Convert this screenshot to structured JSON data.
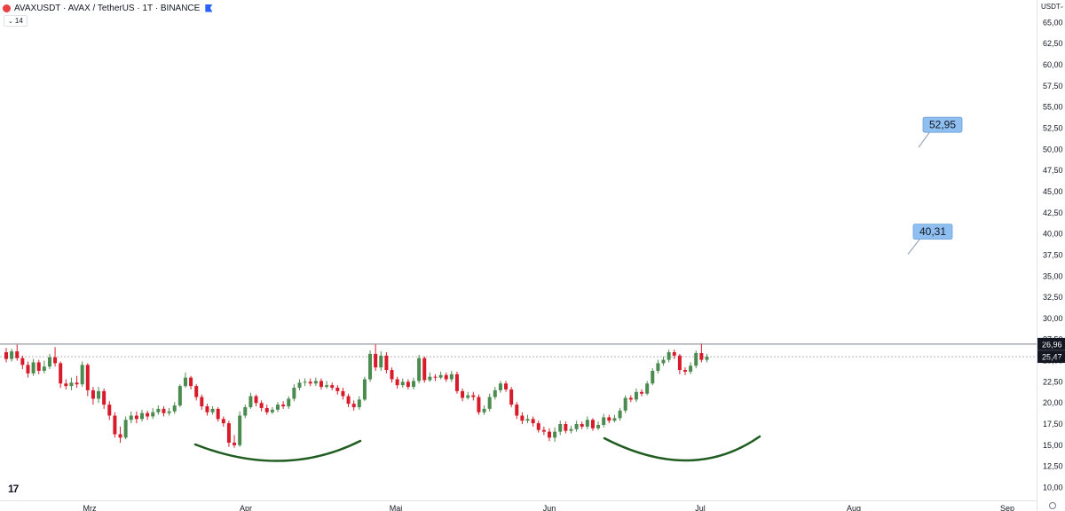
{
  "header": {
    "title": "AVAXUSDT · AVAX / TetherUS · 1T · BINANCE",
    "interval_badge": "14"
  },
  "price_axis": {
    "currency": "USDT",
    "currency_arrow": "⌄"
  },
  "tv_logo": "17",
  "colors": {
    "up": "#4b8b4f",
    "down": "#d81b2a",
    "curve": "#1f5c1f",
    "callout": "#8fbff0",
    "background": "#ffffff"
  },
  "chart_data": {
    "type": "candlestick",
    "ylim": [
      10,
      66
    ],
    "yticks": [
      "10,00",
      "12,50",
      "15,00",
      "17,50",
      "20,00",
      "22,50",
      "25,00",
      "27,50",
      "30,00",
      "32,50",
      "35,00",
      "37,50",
      "40,00",
      "42,50",
      "45,00",
      "47,50",
      "50,00",
      "52,50",
      "55,00",
      "57,50",
      "60,00",
      "62,50",
      "65,00"
    ],
    "xticks": [
      "Mrz",
      "Apr",
      "Mai",
      "Jun",
      "Jul",
      "Aug",
      "Sep"
    ],
    "current_price": "25,47",
    "resistance": {
      "value": 26.96,
      "label": "26,96"
    },
    "targets": [
      {
        "label": "52,95",
        "value": 52.95
      },
      {
        "label": "40,31",
        "value": 40.31
      }
    ],
    "candles": [
      [
        26.0,
        25.2,
        26.5,
        24.8
      ],
      [
        25.2,
        26.1,
        26.4,
        24.9
      ],
      [
        26.1,
        25.3,
        26.9,
        25.0
      ],
      [
        25.3,
        24.5,
        25.6,
        24.0
      ],
      [
        24.5,
        23.5,
        24.9,
        23.0
      ],
      [
        23.5,
        24.8,
        25.2,
        23.2
      ],
      [
        24.8,
        23.8,
        25.1,
        23.4
      ],
      [
        23.8,
        24.3,
        25.0,
        23.5
      ],
      [
        24.3,
        25.4,
        25.8,
        24.0
      ],
      [
        25.4,
        24.7,
        26.6,
        24.3
      ],
      [
        24.7,
        22.3,
        24.9,
        21.8
      ],
      [
        22.3,
        22.0,
        22.8,
        21.6
      ],
      [
        22.0,
        22.4,
        23.0,
        21.5
      ],
      [
        22.4,
        22.2,
        23.2,
        21.8
      ],
      [
        22.2,
        24.5,
        24.9,
        21.9
      ],
      [
        24.5,
        21.5,
        24.7,
        20.8
      ],
      [
        21.5,
        20.5,
        21.9,
        19.8
      ],
      [
        20.5,
        21.4,
        21.9,
        20.0
      ],
      [
        21.4,
        19.8,
        21.7,
        19.3
      ],
      [
        19.8,
        18.5,
        20.2,
        18.0
      ],
      [
        18.5,
        16.3,
        18.9,
        15.9
      ],
      [
        16.3,
        15.9,
        17.2,
        15.3
      ],
      [
        15.9,
        18.0,
        18.4,
        15.7
      ],
      [
        18.0,
        18.5,
        19.0,
        17.6
      ],
      [
        18.5,
        18.1,
        19.0,
        17.6
      ],
      [
        18.1,
        18.8,
        19.2,
        17.8
      ],
      [
        18.8,
        18.4,
        19.1,
        18.0
      ],
      [
        18.4,
        18.9,
        19.4,
        18.1
      ],
      [
        18.9,
        19.3,
        19.7,
        18.6
      ],
      [
        19.3,
        18.8,
        19.6,
        18.4
      ],
      [
        18.8,
        19.0,
        19.4,
        18.5
      ],
      [
        19.0,
        19.7,
        20.1,
        18.7
      ],
      [
        19.7,
        22.0,
        22.2,
        19.5
      ],
      [
        22.0,
        23.0,
        23.6,
        21.8
      ],
      [
        23.0,
        22.0,
        23.2,
        21.6
      ],
      [
        22.0,
        20.7,
        22.2,
        20.3
      ],
      [
        20.7,
        19.6,
        21.0,
        19.2
      ],
      [
        19.6,
        18.9,
        19.9,
        18.5
      ],
      [
        18.9,
        19.3,
        19.6,
        18.6
      ],
      [
        19.3,
        18.1,
        19.5,
        17.8
      ],
      [
        18.1,
        17.6,
        18.4,
        17.2
      ],
      [
        17.6,
        15.3,
        17.9,
        14.8
      ],
      [
        15.3,
        15.0,
        16.2,
        14.7
      ],
      [
        15.0,
        18.5,
        19.0,
        14.8
      ],
      [
        18.5,
        19.5,
        19.8,
        18.2
      ],
      [
        19.5,
        20.8,
        21.2,
        19.3
      ],
      [
        20.8,
        20.0,
        21.0,
        19.6
      ],
      [
        20.0,
        19.4,
        20.3,
        19.0
      ],
      [
        19.4,
        18.9,
        19.8,
        18.6
      ],
      [
        18.9,
        19.2,
        19.5,
        18.7
      ],
      [
        19.2,
        19.8,
        20.1,
        18.9
      ],
      [
        19.8,
        19.6,
        20.2,
        19.3
      ],
      [
        19.6,
        20.5,
        20.8,
        19.3
      ],
      [
        20.5,
        21.8,
        22.2,
        20.2
      ],
      [
        21.8,
        22.4,
        22.8,
        21.5
      ],
      [
        22.4,
        22.5,
        22.9,
        22.0
      ],
      [
        22.5,
        22.3,
        22.9,
        22.0
      ],
      [
        22.3,
        22.6,
        23.0,
        22.0
      ],
      [
        22.6,
        21.9,
        22.9,
        21.6
      ],
      [
        21.9,
        22.1,
        22.6,
        21.7
      ],
      [
        22.1,
        21.8,
        22.4,
        21.5
      ],
      [
        21.8,
        21.4,
        22.1,
        21.0
      ],
      [
        21.4,
        20.8,
        21.8,
        20.4
      ],
      [
        20.8,
        19.9,
        21.1,
        19.5
      ],
      [
        19.9,
        19.5,
        20.3,
        19.1
      ],
      [
        19.5,
        20.4,
        20.8,
        19.2
      ],
      [
        20.4,
        22.8,
        23.1,
        20.2
      ],
      [
        22.8,
        25.8,
        26.2,
        22.5
      ],
      [
        25.8,
        24.2,
        26.9,
        23.8
      ],
      [
        24.2,
        25.6,
        26.1,
        23.8
      ],
      [
        25.6,
        23.9,
        26.0,
        23.5
      ],
      [
        23.9,
        22.8,
        24.2,
        22.4
      ],
      [
        22.8,
        22.1,
        23.1,
        21.7
      ],
      [
        22.1,
        22.5,
        22.9,
        21.8
      ],
      [
        22.5,
        21.9,
        22.8,
        21.6
      ],
      [
        21.9,
        22.6,
        23.0,
        21.6
      ],
      [
        22.6,
        25.3,
        25.7,
        22.3
      ],
      [
        25.3,
        22.7,
        25.5,
        22.4
      ],
      [
        22.7,
        23.1,
        23.6,
        22.5
      ],
      [
        23.1,
        23.0,
        23.4,
        22.6
      ],
      [
        23.0,
        23.3,
        23.7,
        22.8
      ],
      [
        23.3,
        22.8,
        23.6,
        22.5
      ],
      [
        22.8,
        23.4,
        23.8,
        22.5
      ],
      [
        23.4,
        21.4,
        23.7,
        21.1
      ],
      [
        21.4,
        20.6,
        21.7,
        20.2
      ],
      [
        20.6,
        20.9,
        21.3,
        20.4
      ],
      [
        20.9,
        20.7,
        21.3,
        20.3
      ],
      [
        20.7,
        18.9,
        21.0,
        18.6
      ],
      [
        18.9,
        19.3,
        19.7,
        18.6
      ],
      [
        19.3,
        20.7,
        21.1,
        19.0
      ],
      [
        20.7,
        21.5,
        21.9,
        20.4
      ],
      [
        21.5,
        22.3,
        22.6,
        21.2
      ],
      [
        22.3,
        21.6,
        22.6,
        21.3
      ],
      [
        21.6,
        19.8,
        21.9,
        19.5
      ],
      [
        19.8,
        18.5,
        20.1,
        18.1
      ],
      [
        18.5,
        17.9,
        18.9,
        17.5
      ],
      [
        17.9,
        18.1,
        18.6,
        17.6
      ],
      [
        18.1,
        17.6,
        18.4,
        17.2
      ],
      [
        17.6,
        16.8,
        17.9,
        16.5
      ],
      [
        16.8,
        16.6,
        17.2,
        16.2
      ],
      [
        16.6,
        15.9,
        17.0,
        15.5
      ],
      [
        15.9,
        16.6,
        17.1,
        15.4
      ],
      [
        16.6,
        17.5,
        17.9,
        16.2
      ],
      [
        17.5,
        16.7,
        17.8,
        16.4
      ],
      [
        16.7,
        16.9,
        17.3,
        16.4
      ],
      [
        16.9,
        17.5,
        17.9,
        16.6
      ],
      [
        17.5,
        17.2,
        17.8,
        16.9
      ],
      [
        17.2,
        18.0,
        18.4,
        16.9
      ],
      [
        18.0,
        17.0,
        18.2,
        16.7
      ],
      [
        17.0,
        17.4,
        17.8,
        16.8
      ],
      [
        17.4,
        18.3,
        18.7,
        17.1
      ],
      [
        18.3,
        17.9,
        18.6,
        17.6
      ],
      [
        17.9,
        18.2,
        18.6,
        17.7
      ],
      [
        18.2,
        19.1,
        19.4,
        17.9
      ],
      [
        19.1,
        20.6,
        20.9,
        18.8
      ],
      [
        20.6,
        20.4,
        20.9,
        20.1
      ],
      [
        20.4,
        21.3,
        21.7,
        20.1
      ],
      [
        21.3,
        21.1,
        21.6,
        20.8
      ],
      [
        21.1,
        22.3,
        22.6,
        20.9
      ],
      [
        22.3,
        23.8,
        24.1,
        22.1
      ],
      [
        23.8,
        24.7,
        25.1,
        23.5
      ],
      [
        24.7,
        25.1,
        25.5,
        24.4
      ],
      [
        25.1,
        26.0,
        26.3,
        24.8
      ],
      [
        26.0,
        25.6,
        26.3,
        25.2
      ],
      [
        25.6,
        23.9,
        25.8,
        23.4
      ],
      [
        23.9,
        23.7,
        24.2,
        23.3
      ],
      [
        23.7,
        24.4,
        24.8,
        23.4
      ],
      [
        24.4,
        25.9,
        26.2,
        24.1
      ],
      [
        25.9,
        25.1,
        27.0,
        24.8
      ],
      [
        25.1,
        25.47,
        25.8,
        24.8
      ]
    ]
  }
}
